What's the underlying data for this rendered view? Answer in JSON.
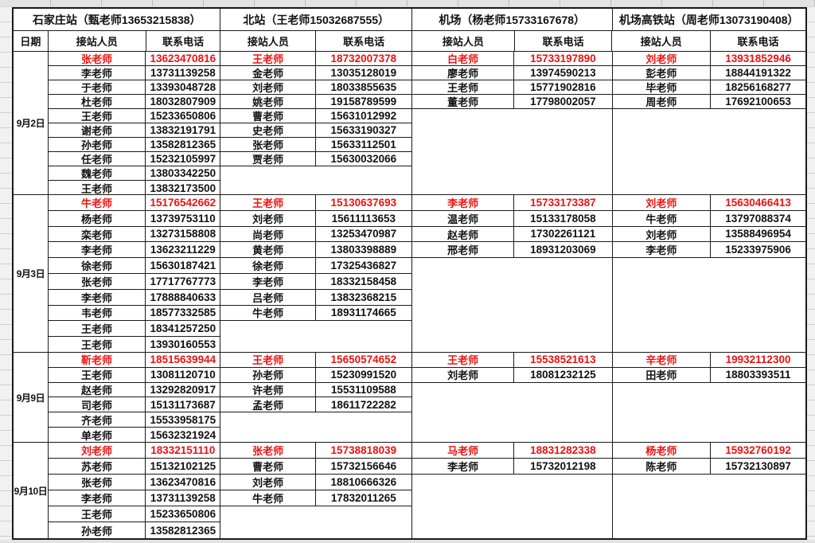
{
  "window": {
    "outer_background": "#ededed"
  },
  "table": {
    "accent_red": "#ee1111",
    "border_color": "#1a1a1a",
    "date_header": "日期",
    "col_headers": [
      "接站人员",
      "联系电话"
    ],
    "stations": [
      {
        "title": "石家庄站（甄老师13653215838）"
      },
      {
        "title": "北站（王老师15032687555）"
      },
      {
        "title": "机场（杨老师15733167678）"
      },
      {
        "title": "机场高铁站（周老师13073190408）"
      }
    ],
    "groups": [
      {
        "date": "9月2日",
        "columns": [
          [
            {
              "name": "张老师",
              "phone": "13623470816",
              "red": true
            },
            {
              "name": "李老师",
              "phone": "13731139258"
            },
            {
              "name": "于老师",
              "phone": "13393048728"
            },
            {
              "name": "杜老师",
              "phone": "18032807909"
            },
            {
              "name": "王老师",
              "phone": "15233650806"
            },
            {
              "name": "谢老师",
              "phone": "13832191791"
            },
            {
              "name": "孙老师",
              "phone": "13582812365"
            },
            {
              "name": "任老师",
              "phone": "15232105997"
            },
            {
              "name": "魏老师",
              "phone": "13803342250"
            },
            {
              "name": "王老师",
              "phone": "13832173500"
            }
          ],
          [
            {
              "name": "王老师",
              "phone": "18732007378",
              "red": true
            },
            {
              "name": "金老师",
              "phone": "13035128019"
            },
            {
              "name": "刘老师",
              "phone": "18033855635"
            },
            {
              "name": "姚老师",
              "phone": "19158789599"
            },
            {
              "name": "曹老师",
              "phone": "15631012992"
            },
            {
              "name": "史老师",
              "phone": "15633190327"
            },
            {
              "name": "张老师",
              "phone": "15633112501"
            },
            {
              "name": "贾老师",
              "phone": "15630032066"
            }
          ],
          [
            {
              "name": "白老师",
              "phone": "15733197890",
              "red": true
            },
            {
              "name": "廖老师",
              "phone": "13974590213"
            },
            {
              "name": "王老师",
              "phone": "15771902816"
            },
            {
              "name": "董老师",
              "phone": "17798002057"
            }
          ],
          [
            {
              "name": "刘老师",
              "phone": "13931852946",
              "red": true
            },
            {
              "name": "彭老师",
              "phone": "18844191322"
            },
            {
              "name": "毕老师",
              "phone": "18256168277"
            },
            {
              "name": "周老师",
              "phone": "17692100653"
            }
          ]
        ]
      },
      {
        "date": "9月3日",
        "columns": [
          [
            {
              "name": "牛老师",
              "phone": "15176542662",
              "red": true
            },
            {
              "name": "杨老师",
              "phone": "13739753110"
            },
            {
              "name": "栾老师",
              "phone": "13273158808"
            },
            {
              "name": "李老师",
              "phone": "13623211229"
            },
            {
              "name": "徐老师",
              "phone": "15630187421"
            },
            {
              "name": "张老师",
              "phone": "17717767773"
            },
            {
              "name": "李老师",
              "phone": "17888840633"
            },
            {
              "name": "韦老师",
              "phone": "18577332585"
            },
            {
              "name": "王老师",
              "phone": "18341257250"
            },
            {
              "name": "王老师",
              "phone": "13930160553"
            }
          ],
          [
            {
              "name": "王老师",
              "phone": "15130637693",
              "red": true
            },
            {
              "name": "刘老师",
              "phone": "15611113653"
            },
            {
              "name": "尚老师",
              "phone": "13253470987"
            },
            {
              "name": "黄老师",
              "phone": "13803398889"
            },
            {
              "name": "徐老师",
              "phone": "17325436827"
            },
            {
              "name": "李老师",
              "phone": "18332158458"
            },
            {
              "name": "吕老师",
              "phone": "13832368215"
            },
            {
              "name": "牛老师",
              "phone": "18931174665"
            }
          ],
          [
            {
              "name": "李老师",
              "phone": "15733173387",
              "red": true
            },
            {
              "name": "温老师",
              "phone": "15133178058"
            },
            {
              "name": "赵老师",
              "phone": "17302261121"
            },
            {
              "name": "邢老师",
              "phone": "18931203069"
            }
          ],
          [
            {
              "name": "刘老师",
              "phone": "15630466413",
              "red": true
            },
            {
              "name": "牛老师",
              "phone": "13797088374"
            },
            {
              "name": "刘老师",
              "phone": "13588496954"
            },
            {
              "name": "李老师",
              "phone": "15233975906"
            }
          ]
        ]
      },
      {
        "date": "9月9日",
        "columns": [
          [
            {
              "name": "靳老师",
              "phone": "18515639944",
              "red": true
            },
            {
              "name": "王老师",
              "phone": "13081120710"
            },
            {
              "name": "赵老师",
              "phone": "13292820917"
            },
            {
              "name": "司老师",
              "phone": "15131173687"
            },
            {
              "name": "齐老师",
              "phone": "15533958175"
            },
            {
              "name": "单老师",
              "phone": "15632321924"
            }
          ],
          [
            {
              "name": "王老师",
              "phone": "15650574652",
              "red": true
            },
            {
              "name": "孙老师",
              "phone": "15230991520"
            },
            {
              "name": "许老师",
              "phone": "15531109588"
            },
            {
              "name": "孟老师",
              "phone": "18611722282"
            }
          ],
          [
            {
              "name": "王老师",
              "phone": "15538521613",
              "red": true
            },
            {
              "name": "刘老师",
              "phone": "18081232125"
            }
          ],
          [
            {
              "name": "辛老师",
              "phone": "19932112300",
              "red": true
            },
            {
              "name": "田老师",
              "phone": "18803393511"
            }
          ]
        ]
      },
      {
        "date": "9月10日",
        "columns": [
          [
            {
              "name": "刘老师",
              "phone": "18332151110",
              "red": true
            },
            {
              "name": "苏老师",
              "phone": "15132102125"
            },
            {
              "name": "张老师",
              "phone": "13623470816"
            },
            {
              "name": "李老师",
              "phone": "13731139258"
            },
            {
              "name": "王老师",
              "phone": "15233650806"
            },
            {
              "name": "孙老师",
              "phone": "13582812365"
            }
          ],
          [
            {
              "name": "张老师",
              "phone": "15738818039",
              "red": true
            },
            {
              "name": "曹老师",
              "phone": "15732156646"
            },
            {
              "name": "刘老师",
              "phone": "18810666326"
            },
            {
              "name": "牛老师",
              "phone": "17832011265"
            }
          ],
          [
            {
              "name": "马老师",
              "phone": "18831282338",
              "red": true
            },
            {
              "name": "李老师",
              "phone": "15732012198"
            }
          ],
          [
            {
              "name": "杨老师",
              "phone": "15932760192",
              "red": true
            },
            {
              "name": "陈老师",
              "phone": "15732130897"
            }
          ]
        ]
      }
    ]
  }
}
